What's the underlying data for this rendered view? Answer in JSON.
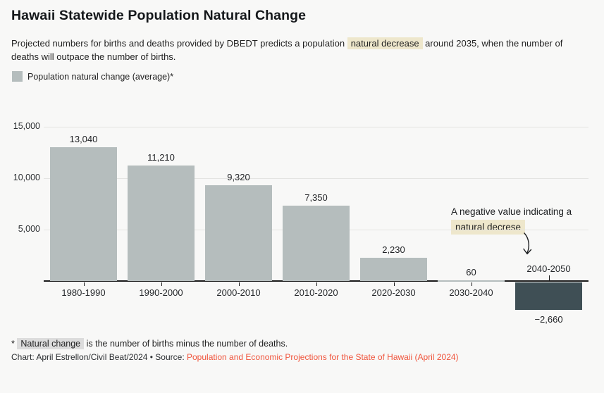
{
  "title": "Hawaii Statewide Population Natural Change",
  "subtitle": {
    "before": "Projected numbers for births and deaths provided by DBEDT predicts a population",
    "highlight": "natural decrease",
    "after": "around 2035, when the number of deaths will outpace the number of births."
  },
  "legend": {
    "label": "Population natural change (average)*"
  },
  "annotation": {
    "line1": "A negative value indicating a",
    "highlight": "natural decrese",
    "arrow_icon": "curved-down-arrow"
  },
  "footnote": {
    "prefix": "*",
    "highlight": "Natural change",
    "text": "is the number of births minus the number of deaths."
  },
  "credit": {
    "text": "Chart: April Estrellon/Civil Beat/2024 • Source:",
    "link": "Population and Economic Projections for the State of Hawaii (April 2024)"
  },
  "colors": {
    "background": "#f8f8f7",
    "bar": "#b5bdbd",
    "bar_negative": "#3f4f55",
    "highlight_beige": "#eee7cc",
    "highlight_gray": "#dcdcdc",
    "link": "#f0543c",
    "gridline": "#e4e4e2",
    "axis": "#1a1a1a"
  },
  "chart_data": {
    "type": "bar",
    "title": "Hawaii Statewide Population Natural Change",
    "series_name": "Population natural change (average)",
    "categories": [
      "1980-1990",
      "1990-2000",
      "2000-2010",
      "2010-2020",
      "2020-2030",
      "2030-2040",
      "2040-2050"
    ],
    "values": [
      13040,
      11210,
      9320,
      7350,
      2230,
      60,
      -2660
    ],
    "value_labels": [
      "13,040",
      "11,210",
      "9,320",
      "7,350",
      "2,230",
      "60",
      "−2,660"
    ],
    "yticks": [
      5000,
      10000,
      15000
    ],
    "ytick_labels": [
      "5,000",
      "10,000",
      "15,000"
    ],
    "ylim": [
      -3500,
      15500
    ],
    "xlabel": "",
    "ylabel": "",
    "grid": true,
    "legend_position": "top-left"
  }
}
